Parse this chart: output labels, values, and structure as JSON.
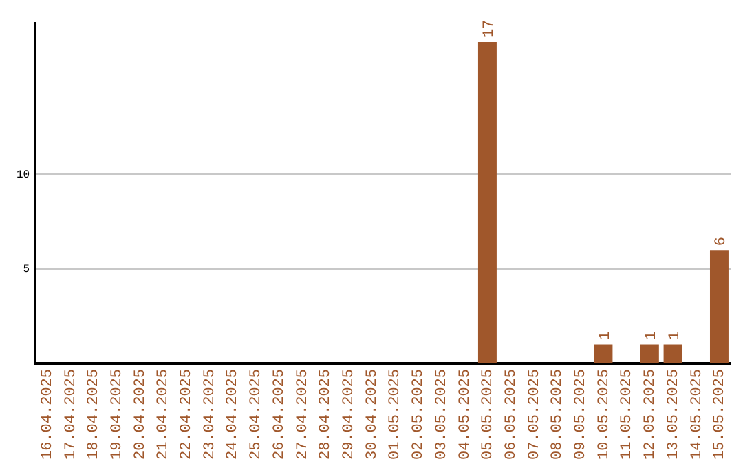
{
  "chart_data": {
    "type": "bar",
    "categories": [
      "16.04.2025",
      "17.04.2025",
      "18.04.2025",
      "19.04.2025",
      "20.04.2025",
      "21.04.2025",
      "22.04.2025",
      "23.04.2025",
      "24.04.2025",
      "25.04.2025",
      "26.04.2025",
      "27.04.2025",
      "28.04.2025",
      "29.04.2025",
      "30.04.2025",
      "01.05.2025",
      "02.05.2025",
      "03.05.2025",
      "04.05.2025",
      "05.05.2025",
      "06.05.2025",
      "07.05.2025",
      "08.05.2025",
      "09.05.2025",
      "10.05.2025",
      "11.05.2025",
      "12.05.2025",
      "13.05.2025",
      "14.05.2025",
      "15.05.2025"
    ],
    "values": [
      0,
      0,
      0,
      0,
      0,
      0,
      0,
      0,
      0,
      0,
      0,
      0,
      0,
      0,
      0,
      0,
      0,
      0,
      0,
      17,
      0,
      0,
      0,
      0,
      1,
      0,
      1,
      1,
      0,
      6
    ],
    "value_labels": [
      null,
      null,
      null,
      null,
      null,
      null,
      null,
      null,
      null,
      null,
      null,
      null,
      null,
      null,
      null,
      null,
      null,
      null,
      null,
      "17",
      null,
      null,
      null,
      null,
      "1",
      null,
      "1",
      "1",
      null,
      "6"
    ],
    "color": "#a0572b",
    "ylim": [
      0,
      18
    ],
    "yticks": [
      5,
      10
    ],
    "grid": "y",
    "legend": false
  }
}
